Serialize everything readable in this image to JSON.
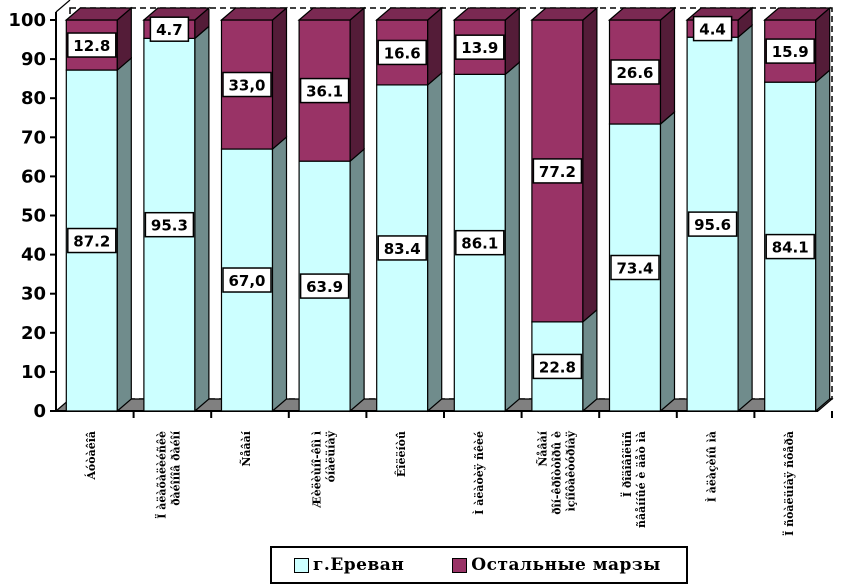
{
  "chart_data": {
    "type": "bar",
    "stacked": true,
    "ylim": [
      0,
      100
    ],
    "yticks": [
      0,
      10,
      20,
      30,
      40,
      50,
      60,
      70,
      80,
      90,
      100
    ],
    "categories": [
      "Áóòàêîâ",
      "Ï àëàõàëèéñêè ðàéîíîâ ðàéîí",
      "Ñåâàí",
      "Æèëèùíî-êîì ì óíàëüíàÿ",
      "Êîëëíòû",
      "Ì àëàòèÿ ñêèé",
      "Ñåâàí ðîí-êðîòòîðû è ìçíîôàêòóðíàÿ",
      "Ï ðîäîâîëüñ ñâåííûé è äåò ìà",
      "Ì àëàçèíû ìà",
      "Ï ñòàëüíàÿ ñôåðà"
    ],
    "series": [
      {
        "name": "г.Ереван",
        "color": "#ccffff",
        "values": [
          87.2,
          95.3,
          67.0,
          63.9,
          83.4,
          86.1,
          22.8,
          73.4,
          95.6,
          84.1
        ],
        "labels": [
          "87.2",
          "95.3",
          "67,0",
          "63.9",
          "83.4",
          "86.1",
          "22.8",
          "73.4",
          "95.6",
          "84.1"
        ]
      },
      {
        "name": "Остальные марзы",
        "color": "#993366",
        "values": [
          12.8,
          4.7,
          33.0,
          36.1,
          16.6,
          13.9,
          77.2,
          26.6,
          4.4,
          15.9
        ],
        "labels": [
          "12.8",
          "4.7",
          "33,0",
          "36.1",
          "16.6",
          "13.9",
          "77.2",
          "26.6",
          "4.4",
          "15.9"
        ]
      }
    ],
    "legend_position": "bottom",
    "grid": false
  },
  "legend": {
    "items": [
      {
        "label": "г.Ереван",
        "color": "#ccffff"
      },
      {
        "label": "Остальные марзы",
        "color": "#993366"
      }
    ]
  }
}
